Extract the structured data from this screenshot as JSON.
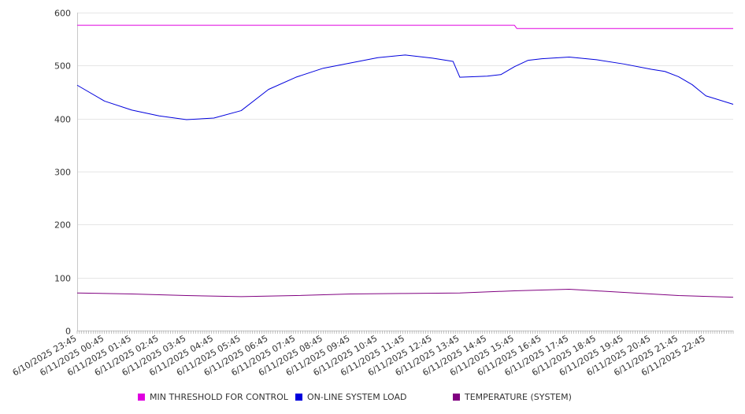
{
  "chart_data": {
    "type": "line",
    "title": "",
    "xlabel": "",
    "ylabel": "",
    "ylim": [
      0,
      600
    ],
    "y_ticks": [
      0,
      100,
      200,
      300,
      400,
      500,
      600
    ],
    "grid": "horizontal",
    "legend_position": "bottom",
    "x_tick_labels": [
      "6/10/2025 23:45",
      "6/11/2025 00:45",
      "6/11/2025 01:45",
      "6/11/2025 02:45",
      "6/11/2025 03:45",
      "6/11/2025 04:45",
      "6/11/2025 05:45",
      "6/11/2025 06:45",
      "6/11/2025 07:45",
      "6/11/2025 08:45",
      "6/11/2025 09:45",
      "6/11/2025 10:45",
      "6/11/2025 11:45",
      "6/11/2025 12:45",
      "6/11/2025 13:45",
      "6/11/2025 14:45",
      "6/11/2025 15:45",
      "6/11/2025 16:45",
      "6/11/2025 17:45",
      "6/11/2025 18:45",
      "6/11/2025 19:45",
      "6/11/2025 20:45",
      "6/11/2025 21:45",
      "6/11/2025 22:45"
    ],
    "x_range": [
      "6/10/2025 23:45",
      "6/11/2025 23:45"
    ],
    "series": [
      {
        "name": "MIN THRESHOLD FOR CONTROL",
        "color": "#e000e0",
        "points": [
          [
            "6/10/2025 23:45",
            576
          ],
          [
            "6/11/2025 15:45",
            576
          ],
          [
            "6/11/2025 15:50",
            570
          ],
          [
            "6/11/2025 23:45",
            570
          ]
        ]
      },
      {
        "name": "ON-LINE SYSTEM LOAD",
        "color": "#0000dd",
        "points": [
          [
            "6/10/2025 23:45",
            463
          ],
          [
            "6/11/2025 00:45",
            433
          ],
          [
            "6/11/2025 01:45",
            416
          ],
          [
            "6/11/2025 02:45",
            405
          ],
          [
            "6/11/2025 03:45",
            398
          ],
          [
            "6/11/2025 04:45",
            401
          ],
          [
            "6/11/2025 05:45",
            415
          ],
          [
            "6/11/2025 06:45",
            455
          ],
          [
            "6/11/2025 07:45",
            478
          ],
          [
            "6/11/2025 08:45",
            495
          ],
          [
            "6/11/2025 09:45",
            505
          ],
          [
            "6/11/2025 10:45",
            515
          ],
          [
            "6/11/2025 11:45",
            520
          ],
          [
            "6/11/2025 12:45",
            514
          ],
          [
            "6/11/2025 13:30",
            508
          ],
          [
            "6/11/2025 13:45",
            478
          ],
          [
            "6/11/2025 14:45",
            480
          ],
          [
            "6/11/2025 15:15",
            483
          ],
          [
            "6/11/2025 15:45",
            498
          ],
          [
            "6/11/2025 16:15",
            510
          ],
          [
            "6/11/2025 16:45",
            513
          ],
          [
            "6/11/2025 17:45",
            516
          ],
          [
            "6/11/2025 18:45",
            511
          ],
          [
            "6/11/2025 19:45",
            503
          ],
          [
            "6/11/2025 20:45",
            493
          ],
          [
            "6/11/2025 21:15",
            489
          ],
          [
            "6/11/2025 21:45",
            479
          ],
          [
            "6/11/2025 22:15",
            464
          ],
          [
            "6/11/2025 22:45",
            443
          ],
          [
            "6/11/2025 23:45",
            427
          ]
        ]
      },
      {
        "name": "TEMPERATURE (SYSTEM)",
        "color": "#800080",
        "points": [
          [
            "6/10/2025 23:45",
            71
          ],
          [
            "6/11/2025 01:45",
            69
          ],
          [
            "6/11/2025 03:45",
            66
          ],
          [
            "6/11/2025 05:45",
            64
          ],
          [
            "6/11/2025 07:45",
            66
          ],
          [
            "6/11/2025 09:45",
            69
          ],
          [
            "6/11/2025 11:45",
            70
          ],
          [
            "6/11/2025 13:45",
            71
          ],
          [
            "6/11/2025 15:45",
            75
          ],
          [
            "6/11/2025 17:45",
            78
          ],
          [
            "6/11/2025 19:45",
            72
          ],
          [
            "6/11/2025 21:45",
            66
          ],
          [
            "6/11/2025 23:45",
            63
          ]
        ]
      }
    ]
  }
}
